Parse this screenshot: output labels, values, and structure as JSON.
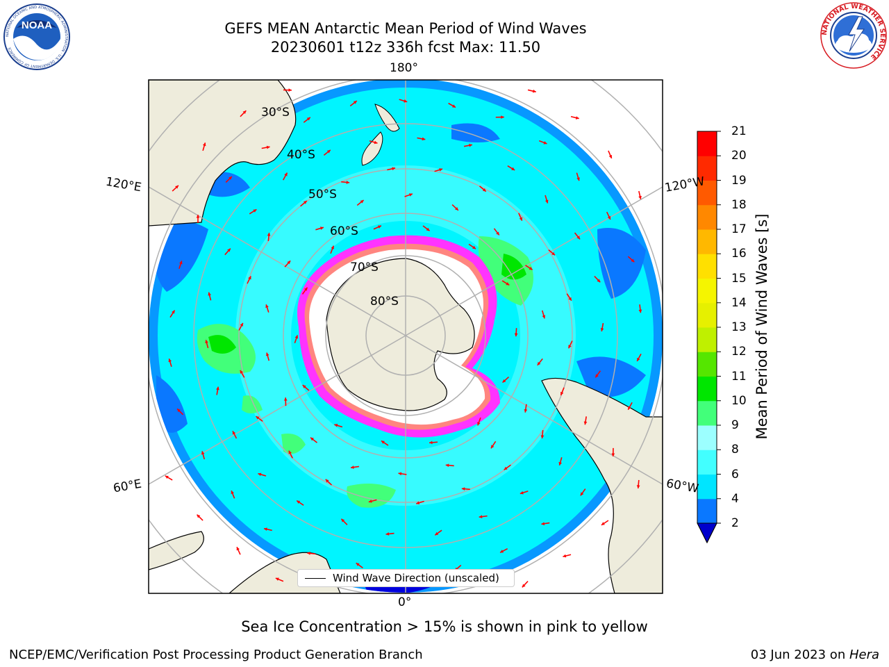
{
  "title": {
    "line1": "GEFS MEAN Antarctic Mean Period of Wind Waves",
    "line2": "20230601 t12z 336h fcst   Max: 11.50"
  },
  "logos": {
    "noaa_text": "NOAA",
    "noaa_ring": "NATIONAL OCEANIC AND ATMOSPHERIC ADMINISTRATION · U.S. DEPARTMENT OF COMMERCE",
    "nws_ring": "NATIONAL WEATHER SERVICE"
  },
  "map": {
    "projection": "south-polar-stereographic",
    "longitude_labels": {
      "top": "180°",
      "bottom": "0°",
      "upper_left": "120°E",
      "upper_right": "120°W",
      "lower_left": "60°E",
      "lower_right": "60°W"
    },
    "latitude_labels": [
      "30°S",
      "40°S",
      "50°S",
      "60°S",
      "70°S",
      "80°S"
    ],
    "legend": "Wind Wave Direction (unscaled)",
    "colors": {
      "land": "#eeecdc",
      "ocean_main": "#00f5ff",
      "ocean_light": "#5cffff",
      "ocean_blue": "#0a78ff",
      "sea_ice": "#ff33ff",
      "ice_edge": "#ffd700",
      "arrows": "#ff0000",
      "grid": "#b0b0b0"
    }
  },
  "colorbar": {
    "label": "Mean Period of Wind Waves [s]",
    "ticks": [
      "2",
      "4",
      "6",
      "8",
      "9",
      "10",
      "11",
      "12",
      "13",
      "14",
      "15",
      "16",
      "17",
      "18",
      "19",
      "20",
      "21"
    ],
    "colors": [
      "#0000ff",
      "#0a78ff",
      "#00e5ff",
      "#42ffff",
      "#9cffff",
      "#42ff7a",
      "#00e600",
      "#55e600",
      "#bff000",
      "#e6f000",
      "#f5f500",
      "#ffe000",
      "#ffb800",
      "#ff8800",
      "#ff5a00",
      "#ff2a00",
      "#ff0000"
    ],
    "under_color": "#0000cc"
  },
  "caption": "Sea Ice Concentration > 15% is shown in pink to yellow",
  "footer": {
    "left": "NCEP/EMC/Verification Post Processing Product Generation Branch",
    "right_prefix": "03 Jun 2023 on ",
    "right_host": "Hera"
  }
}
